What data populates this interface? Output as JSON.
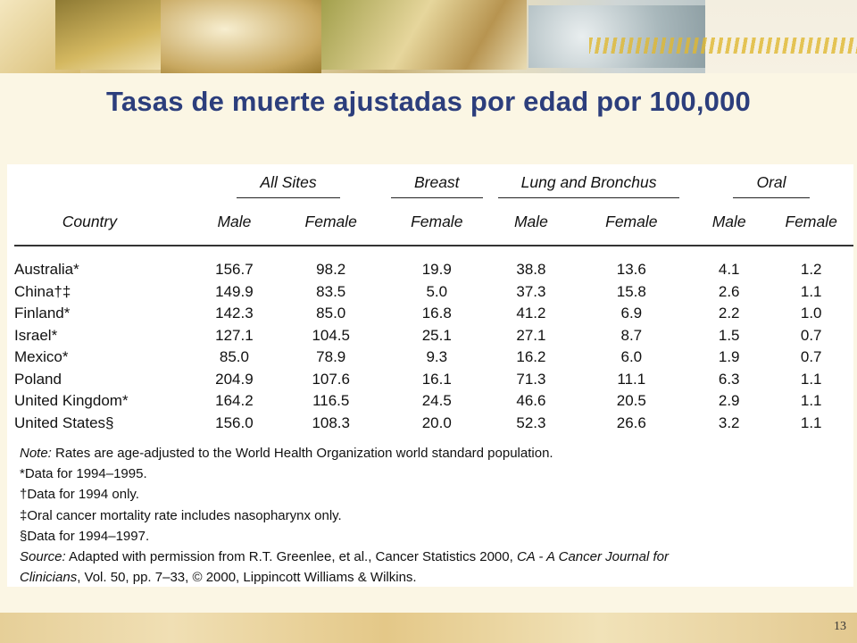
{
  "slide": {
    "title": "Tasas de muerte ajustadas por edad por 100,000",
    "page_number": "13"
  },
  "table": {
    "group_headers": [
      "All Sites",
      "Breast",
      "Lung and Bronchus",
      "Oral"
    ],
    "column_headers": [
      "Country",
      "Male",
      "Female",
      "Female",
      "Male",
      "Female",
      "Male",
      "Female"
    ],
    "rows": [
      {
        "country": "Australia*",
        "values": [
          "156.7",
          "98.2",
          "19.9",
          "38.8",
          "13.6",
          "4.1",
          "1.2"
        ]
      },
      {
        "country": "China†‡",
        "values": [
          "149.9",
          "83.5",
          "5.0",
          "37.3",
          "15.8",
          "2.6",
          "1.1"
        ]
      },
      {
        "country": "Finland*",
        "values": [
          "142.3",
          "85.0",
          "16.8",
          "41.2",
          "6.9",
          "2.2",
          "1.0"
        ]
      },
      {
        "country": "Israel*",
        "values": [
          "127.1",
          "104.5",
          "25.1",
          "27.1",
          "8.7",
          "1.5",
          "0.7"
        ]
      },
      {
        "country": "Mexico*",
        "values": [
          "85.0",
          "78.9",
          "9.3",
          "16.2",
          "6.0",
          "1.9",
          "0.7"
        ]
      },
      {
        "country": "Poland",
        "values": [
          "204.9",
          "107.6",
          "16.1",
          "71.3",
          "11.1",
          "6.3",
          "1.1"
        ]
      },
      {
        "country": "United Kingdom*",
        "values": [
          "164.2",
          "116.5",
          "24.5",
          "46.6",
          "20.5",
          "2.9",
          "1.1"
        ]
      },
      {
        "country": "United States§",
        "values": [
          "156.0",
          "108.3",
          "20.0",
          "52.3",
          "26.6",
          "3.2",
          "1.1"
        ]
      }
    ]
  },
  "notes": {
    "note_label": "Note:",
    "note_text": " Rates are age-adjusted to the World Health Organization world standard population.",
    "footnote_1": "*Data for 1994–1995.",
    "footnote_2": "†Data for 1994 only.",
    "footnote_3": "‡Oral cancer mortality rate includes nasopharynx only.",
    "footnote_4": "§Data for 1994–1997.",
    "source_label": "Source:",
    "source_text": " Adapted with permission from R.T. Greenlee, et al., Cancer Statistics 2000, ",
    "journal_title": "CA - A Cancer Journal for",
    "journal_title_cont": "Clinicians",
    "source_tail": ", Vol. 50, pp. 7–33, © 2000, Lippincott Williams & Wilkins."
  }
}
